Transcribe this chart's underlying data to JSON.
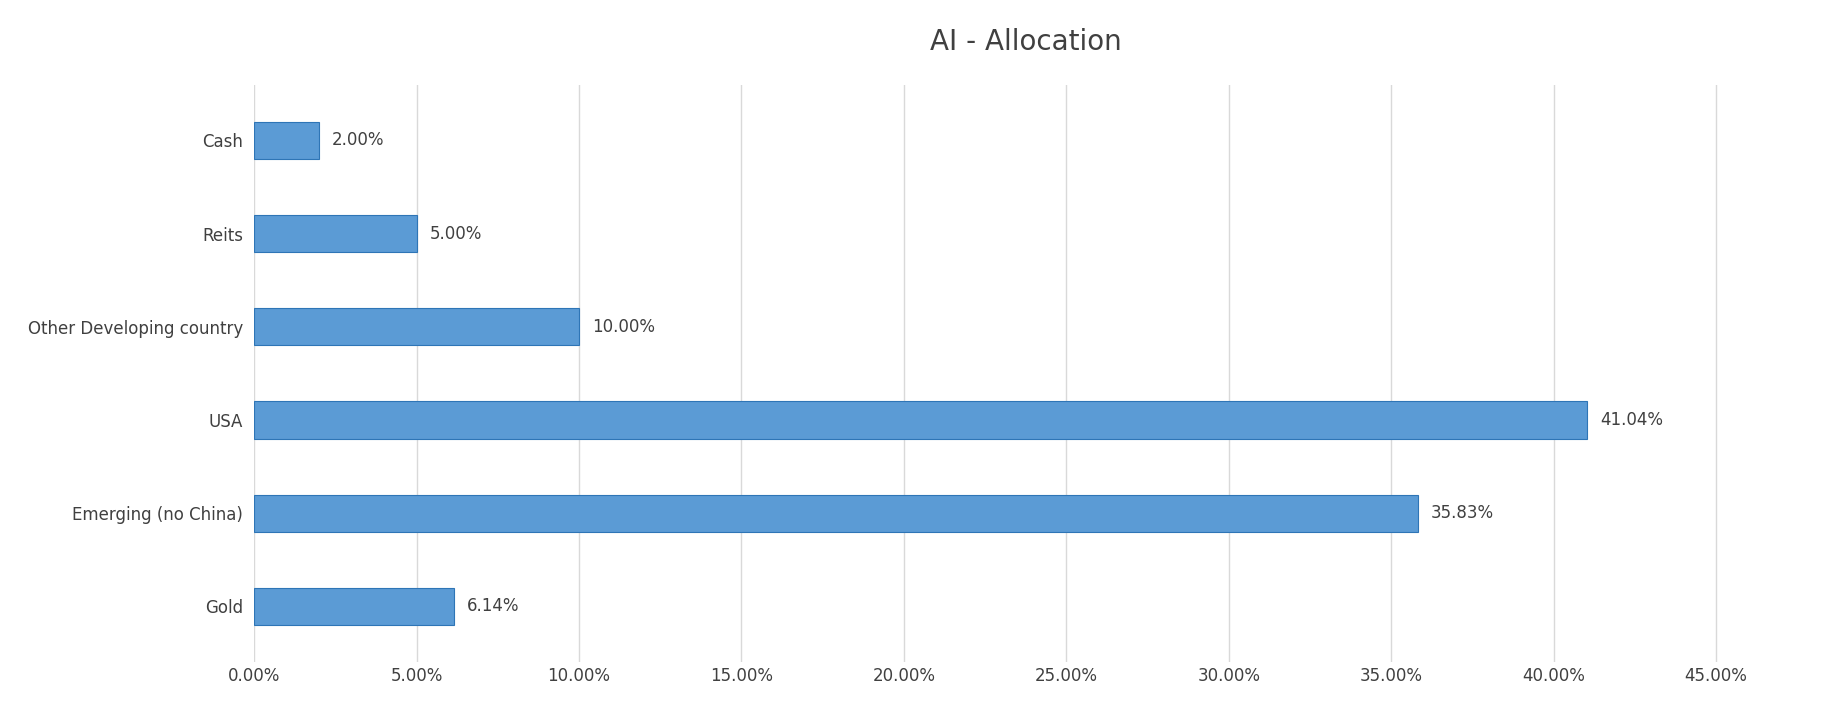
{
  "title": "AI - Allocation",
  "categories": [
    "Gold",
    "Emerging (no China)",
    "USA",
    "Other Developing country",
    "Reits",
    "Cash"
  ],
  "values": [
    6.14,
    35.83,
    41.04,
    10.0,
    5.0,
    2.0
  ],
  "labels": [
    "6.14%",
    "35.83%",
    "41.04%",
    "10.00%",
    "5.00%",
    "2.00%"
  ],
  "bar_color": "#5b9bd5",
  "bar_edge_color": "#2e75b6",
  "background_color": "#ffffff",
  "grid_color": "#d9d9d9",
  "title_color": "#404040",
  "label_color": "#404040",
  "tick_color": "#404040",
  "xlim": [
    0,
    47.5
  ],
  "xticks": [
    0,
    5,
    10,
    15,
    20,
    25,
    30,
    35,
    40,
    45
  ],
  "xtick_labels": [
    "0.00%",
    "5.00%",
    "10.00%",
    "15.00%",
    "20.00%",
    "25.00%",
    "30.00%",
    "35.00%",
    "40.00%",
    "45.00%"
  ],
  "title_fontsize": 20,
  "label_fontsize": 12,
  "tick_fontsize": 12,
  "bar_height": 0.4,
  "figsize": [
    18.25,
    7.13
  ],
  "dpi": 100
}
